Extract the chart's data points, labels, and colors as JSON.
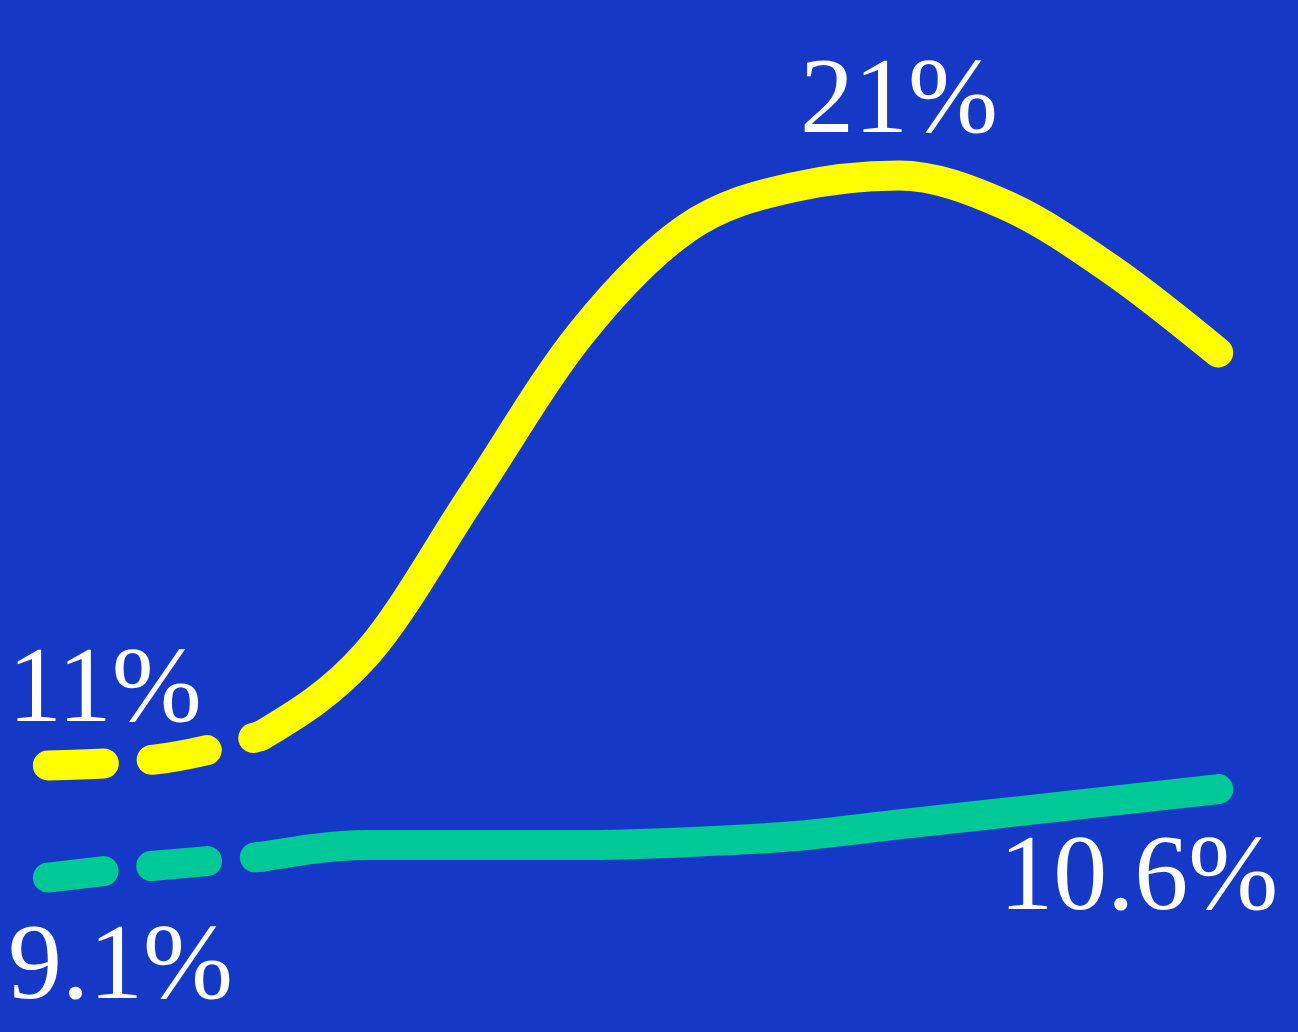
{
  "chart_data": {
    "type": "line",
    "categories": [
      null,
      null,
      null,
      null,
      null,
      null,
      null,
      null,
      null,
      null,
      null,
      null
    ],
    "tick_labels": false,
    "grid": false,
    "marker": "none",
    "series": [
      {
        "color": "#ffff00",
        "line_style": "dashed",
        "values": [
          11,
          11.1,
          11.5,
          null,
          null,
          null,
          null,
          null,
          null,
          null,
          null,
          null
        ],
        "value_labels": [
          "11%",
          null,
          null,
          null,
          null,
          null,
          null,
          null,
          null,
          null,
          null,
          null
        ]
      },
      {
        "color": "#ffff00",
        "line_style": "solid",
        "values": [
          null,
          null,
          11.5,
          12.9,
          15.6,
          18.3,
          20.1,
          20.8,
          21,
          20.5,
          19.4,
          18
        ],
        "value_labels": [
          null,
          null,
          null,
          null,
          null,
          null,
          null,
          null,
          "21%",
          null,
          null,
          null
        ]
      },
      {
        "color": "#00c896",
        "line_style": "dashed",
        "values": [
          9.1,
          9.3,
          9.45,
          null,
          null,
          null,
          null,
          null,
          null,
          null,
          null,
          null
        ],
        "value_labels": [
          "9.1%",
          null,
          null,
          null,
          null,
          null,
          null,
          null,
          null,
          null,
          null,
          null
        ]
      },
      {
        "color": "#00c896",
        "line_style": "solid",
        "values": [
          null,
          null,
          9.45,
          9.65,
          9.65,
          9.65,
          9.7,
          9.8,
          10,
          10.2,
          10.4,
          10.6
        ],
        "value_labels": [
          null,
          null,
          null,
          null,
          null,
          null,
          null,
          null,
          null,
          null,
          null,
          "10.6%"
        ]
      }
    ]
  }
}
